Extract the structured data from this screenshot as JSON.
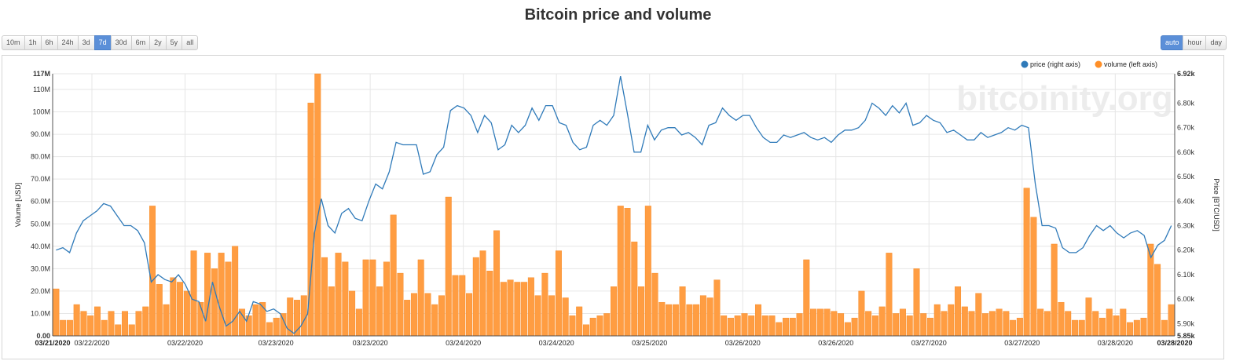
{
  "title": "Bitcoin price and volume",
  "range_buttons": [
    "10m",
    "1h",
    "6h",
    "24h",
    "3d",
    "7d",
    "30d",
    "6m",
    "2y",
    "5y",
    "all"
  ],
  "range_selected": "7d",
  "resolution_buttons": [
    "auto",
    "hour",
    "day"
  ],
  "resolution_selected": "auto",
  "watermark": "bitcoinity.org",
  "chart_data": {
    "type": "bar+line",
    "legend": [
      {
        "name": "price (right axis)",
        "color": "#2f7ab9"
      },
      {
        "name": "volume (left axis)",
        "color": "#ff8f27"
      }
    ],
    "legend_placement": "top-right",
    "grid": true,
    "left_axis": {
      "label": "Volume [USD]",
      "ticks": [
        "0.00",
        "10.0M",
        "20.0M",
        "30.0M",
        "40.0M",
        "50.0M",
        "60.0M",
        "70.0M",
        "80.0M",
        "90.0M",
        "100M",
        "110M",
        "117M"
      ],
      "tick_values": [
        0,
        10,
        20,
        30,
        40,
        50,
        60,
        70,
        80,
        90,
        100,
        110,
        117
      ],
      "range": [
        0,
        117
      ],
      "unit": "M USD"
    },
    "right_axis": {
      "label": "Price [BTC/USD]",
      "ticks": [
        "5.85k",
        "5.90k",
        "6.00k",
        "6.10k",
        "6.20k",
        "6.30k",
        "6.40k",
        "6.50k",
        "6.60k",
        "6.70k",
        "6.80k",
        "6.92k"
      ],
      "tick_values": [
        5.85,
        5.9,
        6.0,
        6.1,
        6.2,
        6.3,
        6.4,
        6.5,
        6.6,
        6.7,
        6.8,
        6.92
      ],
      "range": [
        5.85,
        6.92
      ],
      "unit": "k USD"
    },
    "x_labels": [
      {
        "label": "03/21/2020",
        "pos": 0,
        "bold": true
      },
      {
        "label": "03/22/2020",
        "pos": 0.035
      },
      {
        "label": "03/22/2020",
        "pos": 0.118
      },
      {
        "label": "03/23/2020",
        "pos": 0.199
      },
      {
        "label": "03/23/2020",
        "pos": 0.283
      },
      {
        "label": "03/24/2020",
        "pos": 0.366
      },
      {
        "label": "03/24/2020",
        "pos": 0.449
      },
      {
        "label": "03/25/2020",
        "pos": 0.532
      },
      {
        "label": "03/26/2020",
        "pos": 0.615
      },
      {
        "label": "03/26/2020",
        "pos": 0.698
      },
      {
        "label": "03/27/2020",
        "pos": 0.781
      },
      {
        "label": "03/27/2020",
        "pos": 0.864
      },
      {
        "label": "03/28/2020",
        "pos": 0.947
      },
      {
        "label": "03/28/2020",
        "pos": 1,
        "bold": true
      }
    ],
    "volume": [
      21,
      7,
      7,
      14,
      11,
      9,
      13,
      7,
      11,
      5,
      11,
      5,
      11,
      13,
      58,
      23,
      14,
      26,
      24,
      20,
      38,
      15,
      37,
      30,
      37,
      33,
      40,
      12,
      9,
      14,
      15,
      6,
      8,
      10,
      17,
      16,
      18,
      104,
      117,
      35,
      22,
      37,
      33,
      20,
      12,
      34,
      34,
      22,
      33,
      54,
      28,
      16,
      19,
      34,
      19,
      14,
      18,
      62,
      27,
      27,
      19,
      35,
      38,
      29,
      47,
      24,
      25,
      24,
      24,
      26,
      18,
      28,
      18,
      38,
      17,
      9,
      13,
      5,
      8,
      9,
      10,
      22,
      58,
      57,
      42,
      22,
      58,
      28,
      15,
      14,
      14,
      22,
      14,
      14,
      18,
      17,
      25,
      9,
      8,
      9,
      10,
      9,
      14,
      9,
      9,
      6,
      8,
      8,
      10,
      34,
      12,
      12,
      12,
      11,
      10,
      6,
      8,
      20,
      11,
      9,
      13,
      37,
      10,
      12,
      9,
      30,
      10,
      8,
      14,
      11,
      14,
      22,
      13,
      11,
      19,
      10,
      11,
      12,
      11,
      7,
      8,
      66,
      53,
      12,
      11,
      41,
      15,
      11,
      7,
      7,
      17,
      11,
      8,
      12,
      9,
      12,
      6,
      7,
      8,
      41,
      32,
      7,
      14
    ],
    "price": [
      6.2,
      6.21,
      6.19,
      6.27,
      6.32,
      6.34,
      6.36,
      6.39,
      6.38,
      6.34,
      6.3,
      6.3,
      6.28,
      6.23,
      6.07,
      6.1,
      6.08,
      6.07,
      6.1,
      6.06,
      6.0,
      5.99,
      5.91,
      6.07,
      5.97,
      5.89,
      5.91,
      5.95,
      5.91,
      5.99,
      5.98,
      5.95,
      5.96,
      5.94,
      5.88,
      5.86,
      5.89,
      5.94,
      6.27,
      6.41,
      6.3,
      6.27,
      6.35,
      6.37,
      6.33,
      6.32,
      6.4,
      6.47,
      6.45,
      6.52,
      6.64,
      6.63,
      6.63,
      6.63,
      6.51,
      6.52,
      6.59,
      6.62,
      6.77,
      6.79,
      6.78,
      6.75,
      6.68,
      6.75,
      6.72,
      6.61,
      6.63,
      6.71,
      6.68,
      6.71,
      6.78,
      6.73,
      6.79,
      6.79,
      6.72,
      6.71,
      6.64,
      6.61,
      6.62,
      6.71,
      6.73,
      6.71,
      6.75,
      6.91,
      6.76,
      6.6,
      6.6,
      6.71,
      6.65,
      6.69,
      6.7,
      6.7,
      6.67,
      6.68,
      6.66,
      6.63,
      6.71,
      6.72,
      6.78,
      6.75,
      6.73,
      6.75,
      6.75,
      6.7,
      6.66,
      6.64,
      6.64,
      6.67,
      6.66,
      6.67,
      6.68,
      6.66,
      6.65,
      6.66,
      6.64,
      6.67,
      6.69,
      6.69,
      6.7,
      6.73,
      6.8,
      6.78,
      6.75,
      6.79,
      6.76,
      6.8,
      6.71,
      6.72,
      6.75,
      6.73,
      6.72,
      6.68,
      6.69,
      6.67,
      6.65,
      6.65,
      6.68,
      6.66,
      6.67,
      6.68,
      6.7,
      6.69,
      6.71,
      6.7,
      6.47,
      6.3,
      6.3,
      6.29,
      6.21,
      6.19,
      6.19,
      6.21,
      6.26,
      6.3,
      6.28,
      6.3,
      6.27,
      6.25,
      6.27,
      6.28,
      6.26,
      6.17,
      6.22,
      6.24,
      6.3
    ]
  }
}
